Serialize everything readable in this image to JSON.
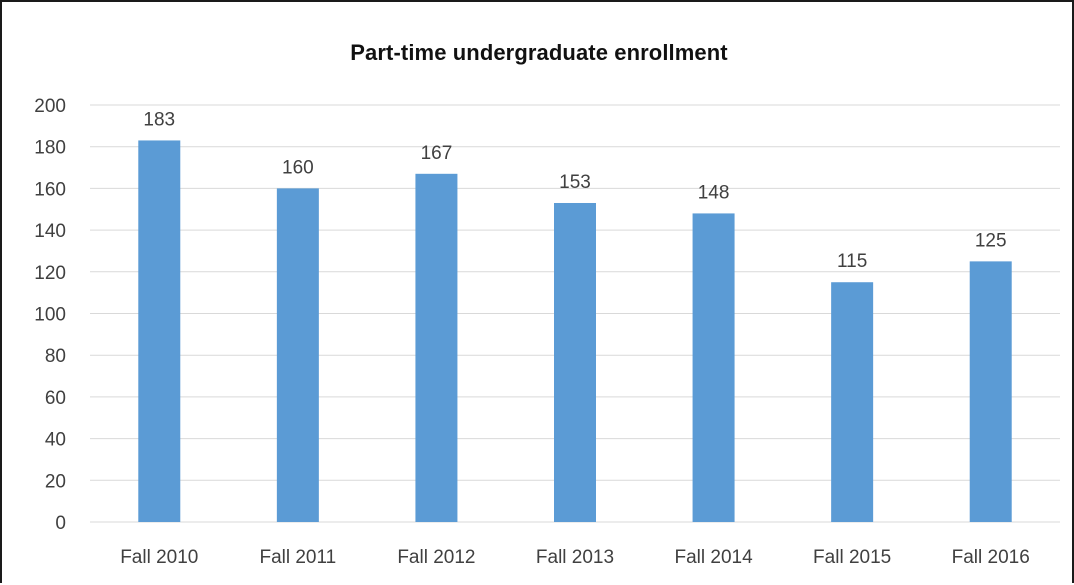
{
  "chart_data": {
    "type": "bar",
    "title": "Part-time undergraduate enrollment",
    "categories": [
      "Fall 2010",
      "Fall 2011",
      "Fall 2012",
      "Fall 2013",
      "Fall 2014",
      "Fall 2015",
      "Fall 2016"
    ],
    "values": [
      183,
      160,
      167,
      153,
      148,
      115,
      125
    ],
    "ylim": [
      0,
      200
    ],
    "ytick_step": 20,
    "yticks": [
      "0",
      "20",
      "40",
      "60",
      "80",
      "100",
      "120",
      "140",
      "160",
      "180",
      "200"
    ],
    "grid": true,
    "legend": "none",
    "bar_color": "#5b9bd5",
    "grid_color": "#d9d9d9",
    "data_labels": true
  }
}
